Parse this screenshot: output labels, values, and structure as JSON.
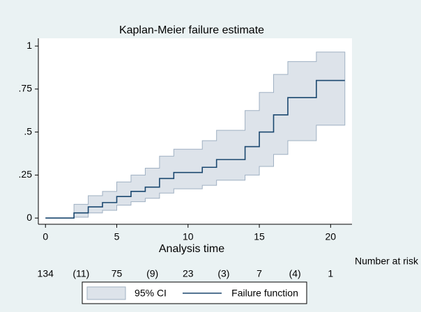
{
  "chart_data": {
    "type": "km_step",
    "title": "Kaplan-Meier failure estimate",
    "x_label": "Analysis time",
    "x": [
      0,
      2,
      3,
      4,
      5,
      6,
      7,
      8,
      9,
      10,
      11,
      12,
      14,
      15,
      16,
      17,
      19,
      21
    ],
    "series": [
      {
        "name": "Failure function",
        "color": "#1a476f",
        "values": [
          0,
          0.03,
          0.065,
          0.09,
          0.125,
          0.155,
          0.18,
          0.23,
          0.265,
          0.265,
          0.295,
          0.34,
          0.415,
          0.5,
          0.6,
          0.7,
          0.8,
          0.8
        ]
      }
    ],
    "band": {
      "name": "95% CI",
      "color": "#dde3ea",
      "edge": "#9fb0c2",
      "lower": [
        0,
        0.005,
        0.03,
        0.045,
        0.075,
        0.095,
        0.115,
        0.145,
        0.17,
        0.17,
        0.19,
        0.22,
        0.25,
        0.3,
        0.37,
        0.45,
        0.54,
        0.54
      ],
      "upper": [
        0,
        0.08,
        0.13,
        0.155,
        0.21,
        0.25,
        0.29,
        0.36,
        0.4,
        0.4,
        0.45,
        0.51,
        0.625,
        0.73,
        0.835,
        0.91,
        0.965,
        0.965
      ]
    },
    "xlim": [
      -0.5,
      21.5
    ],
    "xticks": [
      0,
      5,
      10,
      15,
      20
    ],
    "ylim": [
      -0.036,
      1.045
    ],
    "yticks": [
      0,
      {
        "value": 0.25,
        "label": ".25"
      },
      {
        "value": 0.5,
        "label": ".5"
      },
      {
        "value": 0.75,
        "label": ".75"
      },
      1
    ],
    "risk_table": {
      "label": "Number at risk",
      "n": [
        134,
        75,
        23,
        7,
        1
      ],
      "censored": [
        "(11)",
        "(9)",
        "(3)",
        "(4)"
      ]
    }
  }
}
